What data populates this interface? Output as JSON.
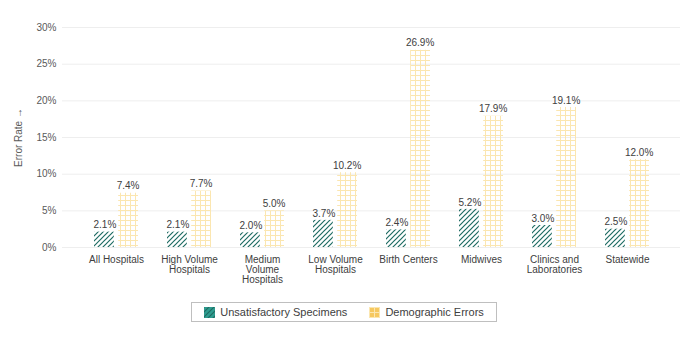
{
  "chart_data": {
    "type": "bar",
    "y_label": "Error Rate",
    "categories": [
      "All Hospitals",
      "High Volume\nHospitals",
      "Medium\nVolume\nHospitals",
      "Low Volume\nHospitals",
      "Birth Centers",
      "Midwives",
      "Clinics and\nLaboratories",
      "Statewide"
    ],
    "series": [
      {
        "name": "Unsatisfactory Specimens",
        "color": "#2e9c8f",
        "values": [
          2.1,
          2.1,
          2.0,
          3.7,
          2.4,
          5.2,
          3.0,
          2.5
        ],
        "value_labels": [
          "2.1%",
          "2.1%",
          "2.0%",
          "3.7%",
          "2.4%",
          "5.2%",
          "3.0%",
          "2.5%"
        ]
      },
      {
        "name": "Demographic Errors",
        "color": "#f6c85f",
        "values": [
          7.4,
          7.7,
          5.0,
          10.2,
          26.9,
          17.9,
          19.1,
          12.0
        ],
        "value_labels": [
          "7.4%",
          "7.7%",
          "5.0%",
          "10.2%",
          "26.9%",
          "17.9%",
          "19.1%",
          "12.0%"
        ]
      }
    ],
    "ylim": [
      0,
      30
    ],
    "yticks": [
      {
        "value": 0,
        "label": "0%"
      },
      {
        "value": 5,
        "label": "5%"
      },
      {
        "value": 10,
        "label": "10%"
      },
      {
        "value": 15,
        "label": "15%"
      },
      {
        "value": 20,
        "label": "20%"
      },
      {
        "value": 25,
        "label": "25%"
      },
      {
        "value": 30,
        "label": "30%"
      }
    ],
    "grid": true,
    "data_labels": true,
    "legend": "bottom"
  }
}
